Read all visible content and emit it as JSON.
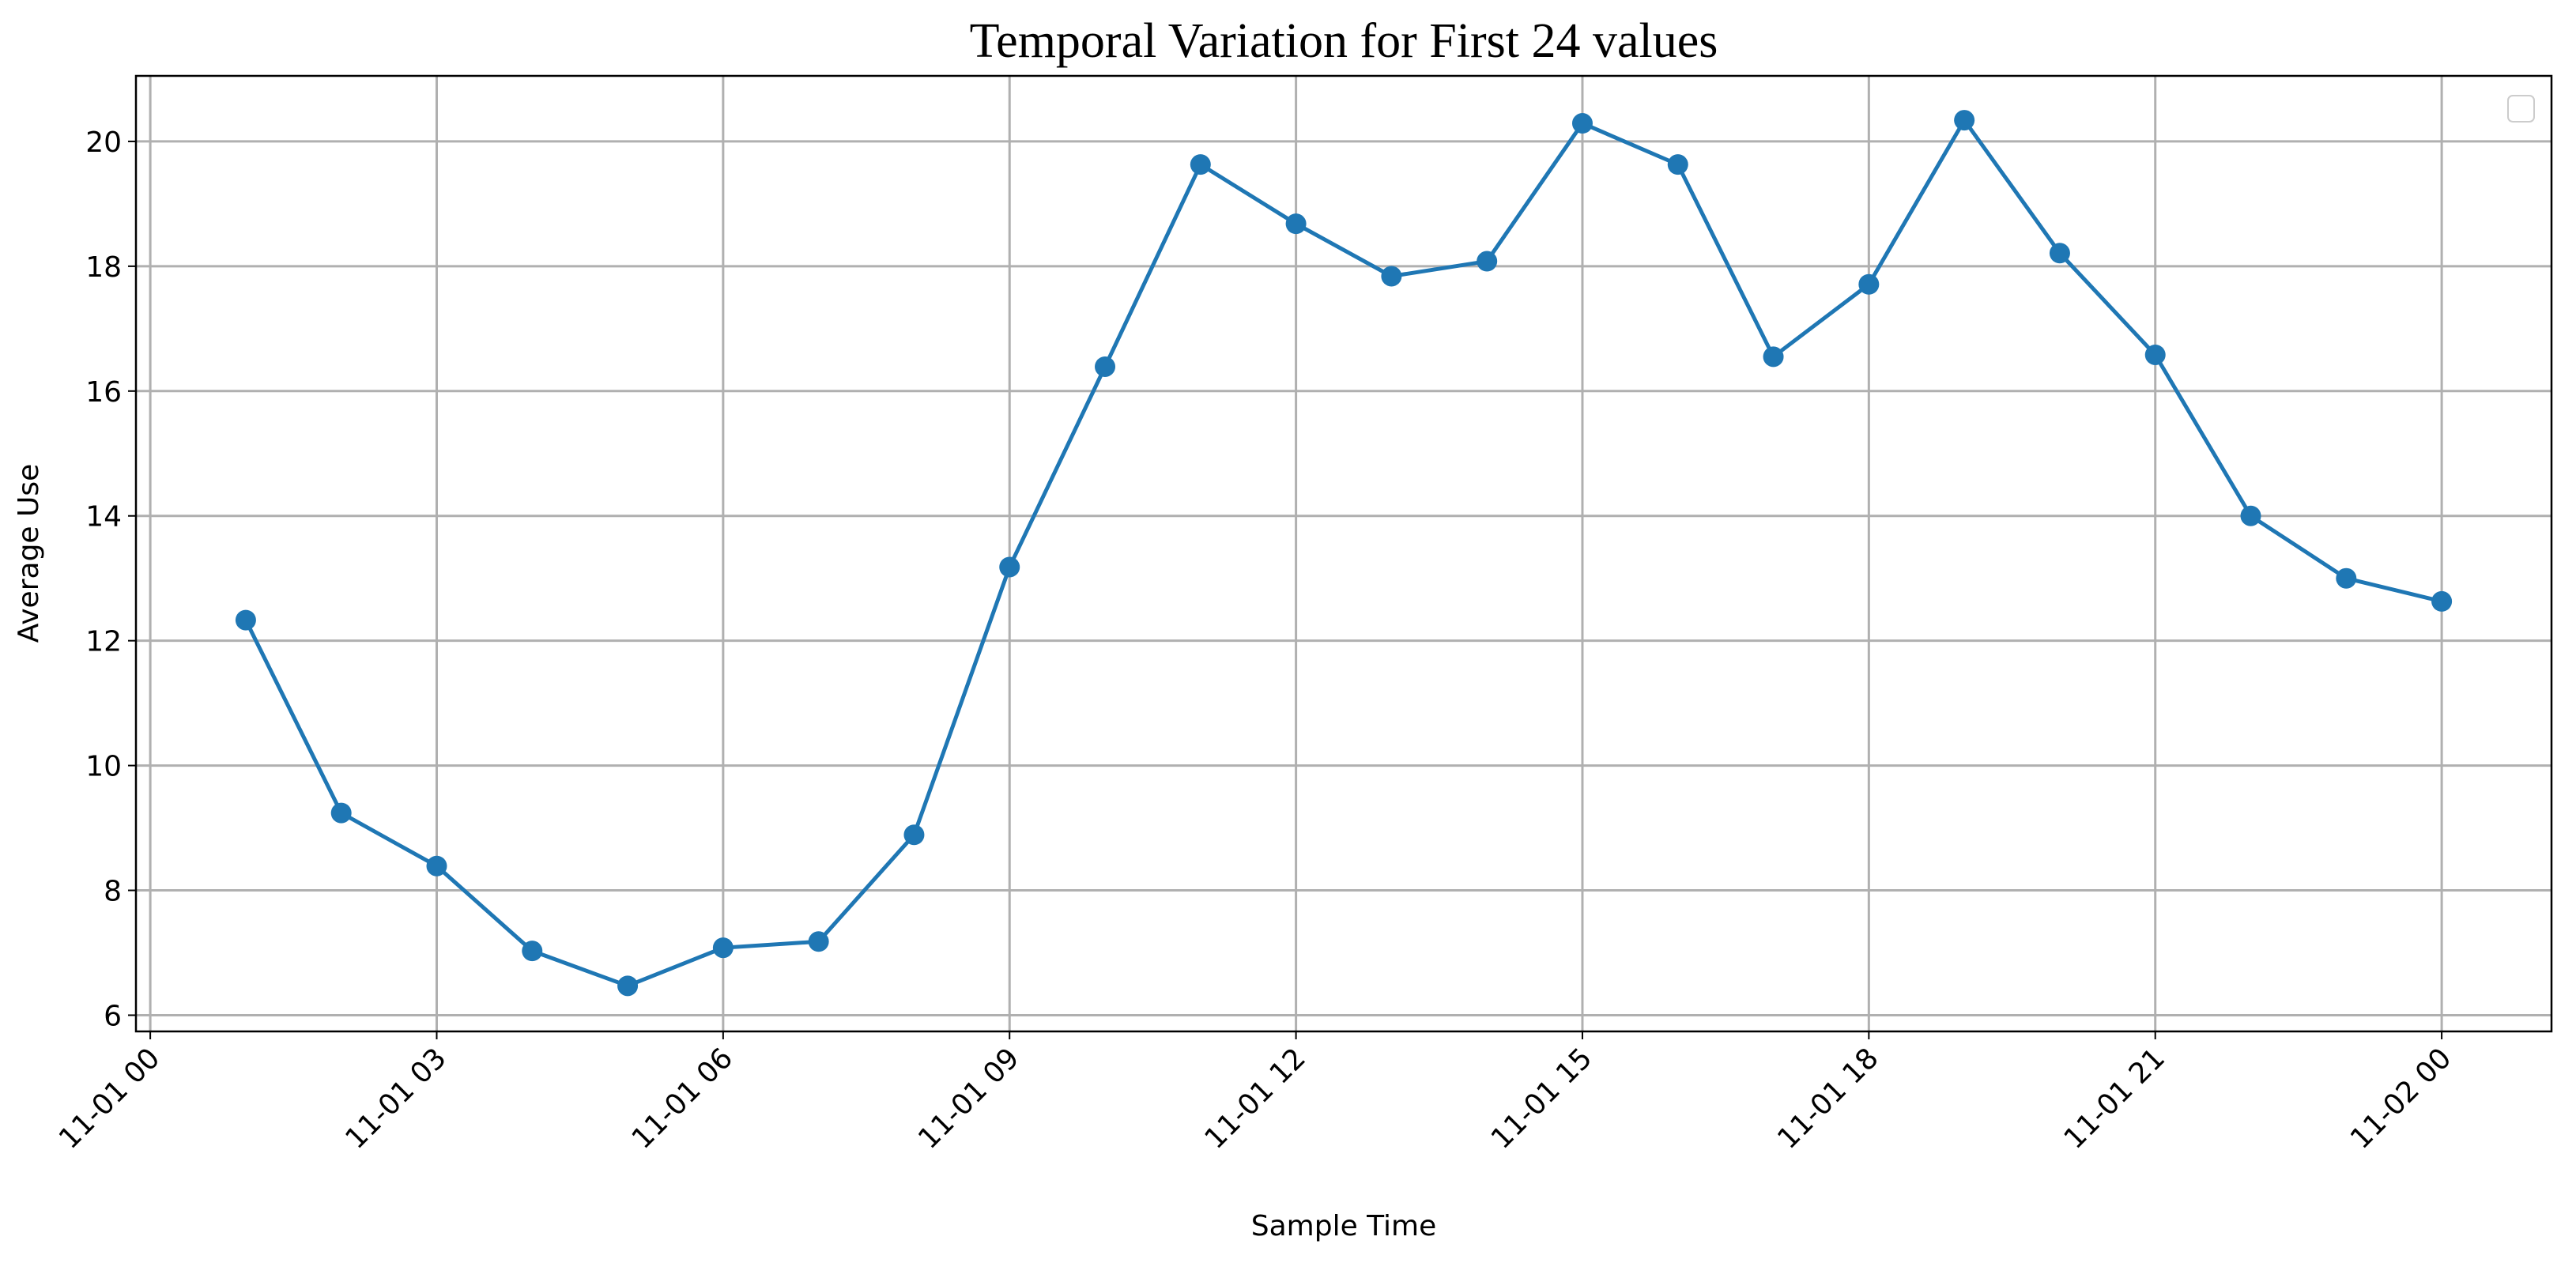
{
  "chart_data": {
    "type": "line",
    "title": "Temporal Variation for First 24 values",
    "xlabel": "Sample Time",
    "ylabel": "Average Use",
    "x": [
      "11-01 01",
      "11-01 02",
      "11-01 03",
      "11-01 04",
      "11-01 05",
      "11-01 06",
      "11-01 07",
      "11-01 08",
      "11-01 09",
      "11-01 10",
      "11-01 11",
      "11-01 12",
      "11-01 13",
      "11-01 14",
      "11-01 15",
      "11-01 16",
      "11-01 17",
      "11-01 18",
      "11-01 19",
      "11-01 20",
      "11-01 21",
      "11-01 22",
      "11-01 23",
      "11-02 00"
    ],
    "values": [
      12.33,
      9.24,
      8.39,
      7.03,
      6.47,
      7.08,
      7.18,
      8.89,
      13.18,
      16.39,
      19.63,
      18.68,
      17.84,
      18.08,
      20.29,
      19.63,
      16.55,
      17.71,
      20.34,
      18.21,
      16.58,
      14.0,
      13.0,
      12.63
    ],
    "color": "#1f77b4",
    "xlim": [
      -0.15,
      25.15
    ],
    "xticks": [
      "11-01 00",
      "11-01 03",
      "11-01 06",
      "11-01 09",
      "11-01 12",
      "11-01 15",
      "11-01 18",
      "11-01 21",
      "11-02 00"
    ],
    "ylim": [
      5.74,
      21.05
    ],
    "yticks": [
      6,
      8,
      10,
      12,
      14,
      16,
      18,
      20
    ],
    "grid": true
  }
}
